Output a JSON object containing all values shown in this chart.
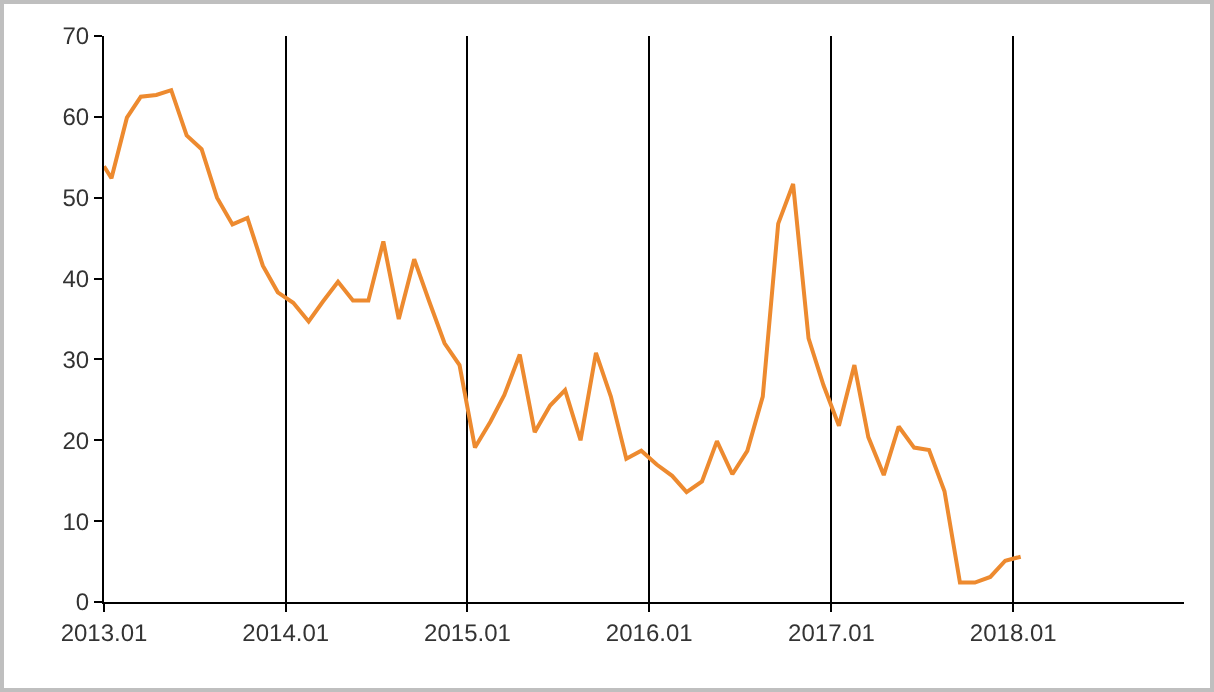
{
  "chart_data": {
    "type": "line",
    "x": [
      "2013-01-01",
      "2013-01-16",
      "2013-02-16",
      "2013-03-16",
      "2013-04-16",
      "2013-05-16",
      "2013-06-16",
      "2013-07-16",
      "2013-08-16",
      "2013-09-16",
      "2013-10-16",
      "2013-11-16",
      "2013-12-16",
      "2014-01-16",
      "2014-02-16",
      "2014-03-16",
      "2014-04-16",
      "2014-05-16",
      "2014-06-16",
      "2014-07-16",
      "2014-08-16",
      "2014-09-16",
      "2014-10-16",
      "2014-11-16",
      "2014-12-16",
      "2015-01-16",
      "2015-02-16",
      "2015-03-16",
      "2015-04-16",
      "2015-05-16",
      "2015-06-16",
      "2015-07-16",
      "2015-08-16",
      "2015-09-16",
      "2015-10-16",
      "2015-11-16",
      "2015-12-16",
      "2016-01-16",
      "2016-02-16",
      "2016-03-16",
      "2016-04-16",
      "2016-05-16",
      "2016-06-16",
      "2016-07-16",
      "2016-08-16",
      "2016-09-16",
      "2016-10-16",
      "2016-11-16",
      "2016-12-16",
      "2017-01-16",
      "2017-02-16",
      "2017-03-16",
      "2017-04-16",
      "2017-05-16",
      "2017-06-16",
      "2017-07-16",
      "2017-08-16",
      "2017-09-16",
      "2017-10-16",
      "2017-11-16",
      "2017-12-16",
      "2018-01-16"
    ],
    "series": [
      {
        "color": "#ed8a2f",
        "values": [
          53.9,
          52.4,
          59.9,
          62.5,
          62.7,
          63.3,
          57.7,
          56,
          50,
          46.7,
          47.5,
          41.6,
          38.3,
          37,
          34.7,
          37.1,
          39.6,
          37.3,
          37.3,
          44.6,
          35,
          42.4,
          37.2,
          32,
          29.3,
          19.1,
          22.3,
          25.6,
          30.6,
          21,
          24.3,
          26.2,
          20,
          30.8,
          25.4,
          17.7,
          18.7,
          17,
          15.6,
          13.6,
          14.9,
          19.9,
          15.8,
          18.7,
          25.4,
          46.8,
          51.7,
          32.6,
          26.8,
          21.8,
          29.3,
          20.4,
          15.7,
          21.7,
          19.1,
          18.8,
          13.7,
          2.4,
          2.4,
          3.1,
          5.1,
          5.6
        ]
      }
    ],
    "xlim": [
      "2013-01-01",
      "2018-12-10"
    ],
    "xticks": [
      {
        "value": "2013-01-01",
        "label": "2013.01"
      },
      {
        "value": "2014-01-01",
        "label": "2014.01"
      },
      {
        "value": "2015-01-01",
        "label": "2015.01"
      },
      {
        "value": "2016-01-01",
        "label": "2016.01"
      },
      {
        "value": "2017-01-01",
        "label": "2017.01"
      },
      {
        "value": "2018-01-01",
        "label": "2018.01"
      }
    ],
    "ylim": [
      0,
      70
    ],
    "yticks": [
      0,
      10,
      20,
      30,
      40,
      50,
      60,
      70
    ],
    "grid": "x",
    "marker": "none",
    "line_style": "solid"
  }
}
